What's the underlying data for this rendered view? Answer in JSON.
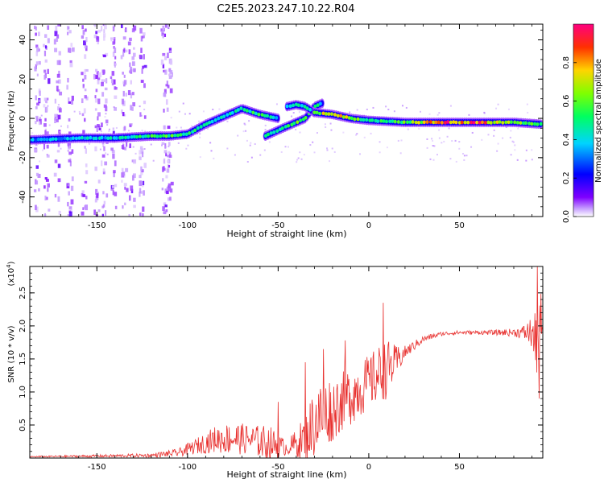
{
  "title": "C2E5.2023.247.10.22.R04",
  "chart_data": [
    {
      "type": "heatmap",
      "name": "spectrogram",
      "xlabel": "Height of straight line (km)",
      "ylabel": "Frequency (Hz)",
      "xlim": [
        -187,
        96
      ],
      "ylim": [
        -50,
        48
      ],
      "xticks": [
        -150,
        -100,
        -50,
        0,
        50
      ],
      "yticks": [
        40,
        20,
        0,
        -20,
        -40
      ],
      "colorbar": {
        "label": "Normalized spectral amplitude",
        "range": [
          0,
          1
        ],
        "ticks": [
          0.0,
          0.2,
          0.4,
          0.6,
          0.8
        ]
      },
      "tracks": [
        {
          "name": "main-trace-left",
          "points": [
            [
              -187,
              -11
            ],
            [
              -160,
              -10
            ],
            [
              -140,
              -10
            ],
            [
              -120,
              -9
            ],
            [
              -110,
              -9
            ],
            [
              -100,
              -8
            ],
            [
              -90,
              -3
            ],
            [
              -80,
              1
            ],
            [
              -70,
              5
            ],
            [
              -60,
              2
            ],
            [
              -50,
              0
            ]
          ],
          "amplitude": [
            0.35,
            0.4,
            0.45,
            0.55,
            0.6,
            0.55,
            0.45,
            0.45,
            0.5,
            0.55,
            0.45
          ]
        },
        {
          "name": "branch-rising",
          "points": [
            [
              -57,
              -9
            ],
            [
              -50,
              -6
            ],
            [
              -45,
              -4
            ],
            [
              -40,
              -2
            ],
            [
              -35,
              0
            ],
            [
              -30,
              6
            ],
            [
              -25,
              8
            ]
          ],
          "amplitude": [
            0.5,
            0.5,
            0.55,
            0.6,
            0.55,
            0.5,
            0.45
          ]
        },
        {
          "name": "branch-upper",
          "points": [
            [
              -45,
              6
            ],
            [
              -40,
              7
            ],
            [
              -35,
              6
            ],
            [
              -30,
              3
            ]
          ],
          "amplitude": [
            0.4,
            0.45,
            0.5,
            0.45
          ]
        },
        {
          "name": "main-trace-right",
          "points": [
            [
              -30,
              3
            ],
            [
              -20,
              2
            ],
            [
              -10,
              0
            ],
            [
              0,
              -1
            ],
            [
              20,
              -2
            ],
            [
              40,
              -2
            ],
            [
              60,
              -2
            ],
            [
              80,
              -2
            ],
            [
              96,
              -3
            ]
          ],
          "amplitude": [
            0.7,
            0.8,
            0.7,
            0.55,
            0.6,
            0.9,
            0.95,
            0.7,
            0.5
          ]
        }
      ]
    },
    {
      "type": "line",
      "name": "snr",
      "xlabel": "Height of straight line (km)",
      "ylabel": "SNR (10 * v/v)",
      "yscale_label": "(x10",
      "yscale_exp": "4",
      "yscale_close": ")",
      "xlim": [
        -187,
        96
      ],
      "ylim": [
        0,
        2.9
      ],
      "xticks": [
        -150,
        -100,
        -50,
        0,
        50
      ],
      "yticks": [
        0.5,
        1.0,
        1.5,
        2.0,
        2.5
      ],
      "series": [
        {
          "name": "SNR",
          "color": "#e8312f",
          "envelope": {
            "x": [
              -187,
              -150,
              -120,
              -105,
              -95,
              -85,
              -75,
              -65,
              -55,
              -45,
              -35,
              -30,
              -25,
              -20,
              -15,
              -10,
              -5,
              0,
              5,
              10,
              15,
              20,
              30,
              40,
              50,
              60,
              70,
              80,
              85,
              90,
              92,
              94,
              96
            ],
            "base": [
              0.02,
              0.03,
              0.04,
              0.08,
              0.18,
              0.28,
              0.3,
              0.28,
              0.22,
              0.15,
              0.3,
              0.55,
              0.65,
              0.75,
              0.85,
              0.95,
              1.05,
              1.15,
              1.25,
              1.35,
              1.45,
              1.6,
              1.8,
              1.88,
              1.9,
              1.9,
              1.9,
              1.9,
              1.9,
              1.9,
              1.7,
              1.9,
              2.2
            ],
            "amp": [
              0.01,
              0.02,
              0.03,
              0.06,
              0.12,
              0.2,
              0.25,
              0.22,
              0.28,
              0.1,
              0.35,
              0.55,
              0.55,
              0.5,
              0.45,
              0.45,
              0.45,
              0.4,
              0.45,
              0.45,
              0.25,
              0.1,
              0.05,
              0.03,
              0.03,
              0.03,
              0.04,
              0.06,
              0.1,
              0.25,
              0.5,
              0.6,
              0.5
            ]
          },
          "spikes": [
            [
              -50,
              0.85
            ],
            [
              -35,
              1.45
            ],
            [
              -25,
              1.65
            ],
            [
              -13,
              1.78
            ],
            [
              8,
              2.35
            ],
            [
              -20,
              0.35
            ],
            [
              93,
              2.9
            ],
            [
              94,
              0.9
            ]
          ]
        }
      ]
    }
  ]
}
